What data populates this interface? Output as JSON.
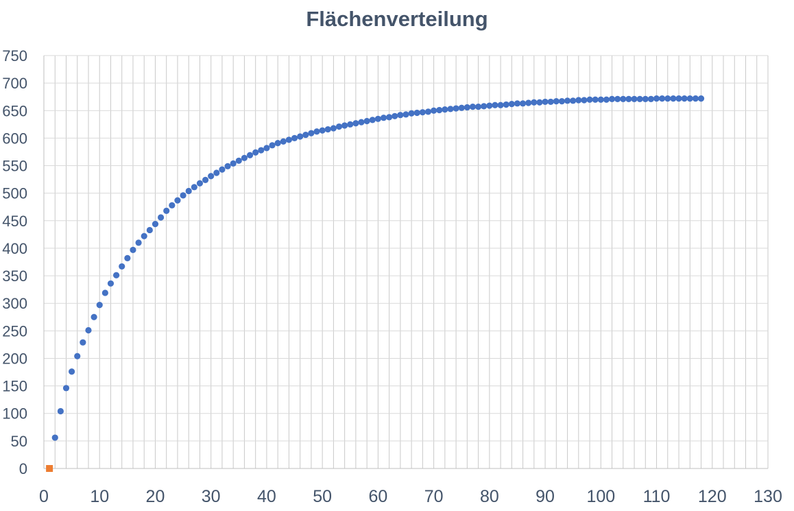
{
  "chart_data": {
    "type": "scatter",
    "title": "Flächenverteilung",
    "xlabel": "",
    "ylabel": "",
    "xlim": [
      0,
      130
    ],
    "ylim": [
      0,
      750
    ],
    "x_ticks": [
      "0",
      "10",
      "20",
      "30",
      "40",
      "50",
      "60",
      "70",
      "80",
      "90",
      "100",
      "110",
      "120",
      "130"
    ],
    "y_ticks": [
      "0",
      "50",
      "100",
      "150",
      "200",
      "250",
      "300",
      "350",
      "400",
      "450",
      "500",
      "550",
      "600",
      "650",
      "700",
      "750"
    ],
    "grid": {
      "vertical_every": 2,
      "horizontal_every": 50
    },
    "legend": "none",
    "series": [
      {
        "marker": "circle",
        "color": "#4472c4",
        "x": [
          2,
          3,
          4,
          5,
          6,
          7,
          8,
          9,
          10,
          11,
          12,
          13,
          14,
          15,
          16,
          17,
          18,
          19,
          20,
          21,
          22,
          23,
          24,
          25,
          26,
          27,
          28,
          29,
          30,
          31,
          32,
          33,
          34,
          35,
          36,
          37,
          38,
          39,
          40,
          41,
          42,
          43,
          44,
          45,
          46,
          47,
          48,
          49,
          50,
          51,
          52,
          53,
          54,
          55,
          56,
          57,
          58,
          59,
          60,
          61,
          62,
          63,
          64,
          65,
          66,
          67,
          68,
          69,
          70,
          71,
          72,
          73,
          74,
          75,
          76,
          77,
          78,
          79,
          80,
          81,
          82,
          83,
          84,
          85,
          86,
          87,
          88,
          89,
          90,
          91,
          92,
          93,
          94,
          95,
          96,
          97,
          98,
          99,
          100,
          101,
          102,
          103,
          104,
          105,
          106,
          107,
          108,
          109,
          110,
          111,
          112,
          113,
          114,
          115,
          116,
          117,
          118
        ],
        "y": [
          56,
          104,
          146,
          176,
          204,
          229,
          251,
          275,
          297,
          319,
          336,
          351,
          367,
          382,
          397,
          410,
          422,
          433,
          444,
          456,
          468,
          478,
          487,
          496,
          504,
          511,
          518,
          524,
          531,
          537,
          543,
          549,
          554,
          559,
          564,
          569,
          574,
          578,
          582,
          587,
          591,
          594,
          597,
          600,
          603,
          606,
          609,
          612,
          614,
          616,
          618,
          621,
          623,
          625,
          627,
          629,
          631,
          633,
          635,
          637,
          638,
          640,
          642,
          643,
          645,
          646,
          647,
          648,
          650,
          651,
          652,
          653,
          654,
          655,
          656,
          657,
          657,
          658,
          659,
          660,
          660,
          661,
          662,
          663,
          663,
          664,
          665,
          665,
          666,
          666,
          667,
          667,
          668,
          668,
          669,
          669,
          670,
          670,
          670,
          670,
          671,
          671,
          671,
          671,
          671,
          671,
          671,
          671,
          672,
          672,
          672,
          672,
          672,
          672,
          672,
          672,
          672
        ]
      },
      {
        "marker": "square",
        "color": "#ed7d31",
        "x": [
          1
        ],
        "y": [
          0
        ]
      }
    ]
  }
}
